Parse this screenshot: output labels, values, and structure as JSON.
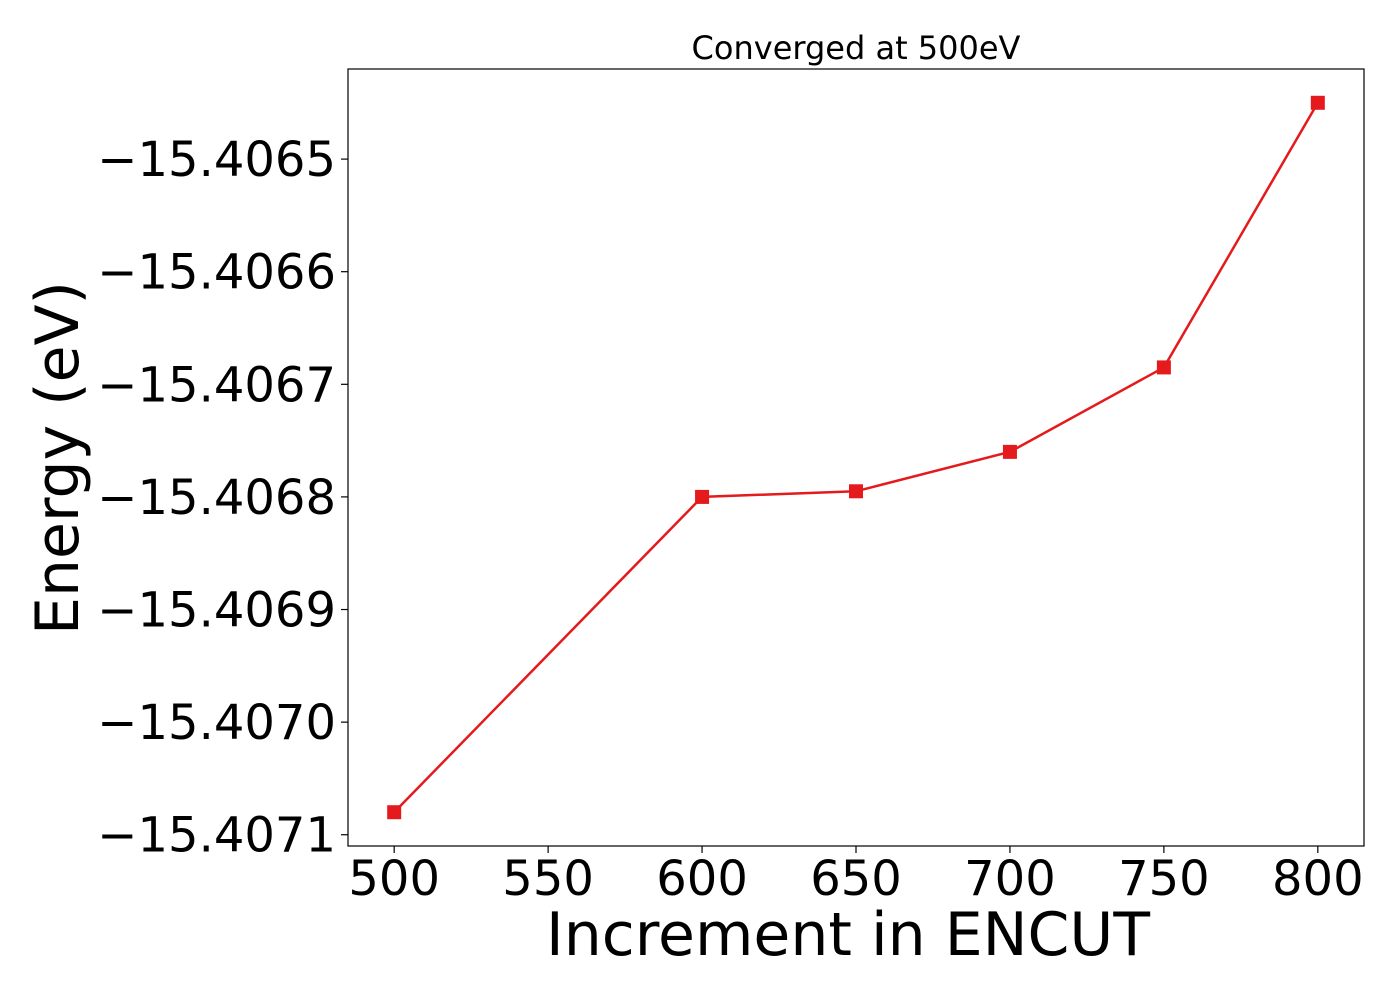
{
  "chart_data": {
    "type": "line",
    "title": "Converged at 500eV",
    "xlabel": "Increment in ENCUT",
    "ylabel": "Energy (eV)",
    "x": [
      500,
      600,
      650,
      700,
      750,
      800
    ],
    "series": [
      {
        "values": [
          -15.40708,
          -15.4068,
          -15.406795,
          -15.40676,
          -15.406685,
          -15.40645
        ],
        "color": "#e41a1c",
        "marker": "square"
      }
    ],
    "xticks": [
      500,
      550,
      600,
      650,
      700,
      750,
      800
    ],
    "xtick_labels": [
      "500",
      "550",
      "600",
      "650",
      "700",
      "750",
      "800"
    ],
    "yticks": [
      -15.4071,
      -15.407,
      -15.4069,
      -15.4068,
      -15.4067,
      -15.4066,
      -15.4065
    ],
    "ytick_labels": [
      "−15.4071",
      "−15.4070",
      "−15.4069",
      "−15.4068",
      "−15.4067",
      "−15.4066",
      "−15.4065"
    ],
    "xlim": [
      485,
      815
    ],
    "ylim": [
      -15.40711,
      -15.40642
    ],
    "grid": false,
    "legend": false
  }
}
